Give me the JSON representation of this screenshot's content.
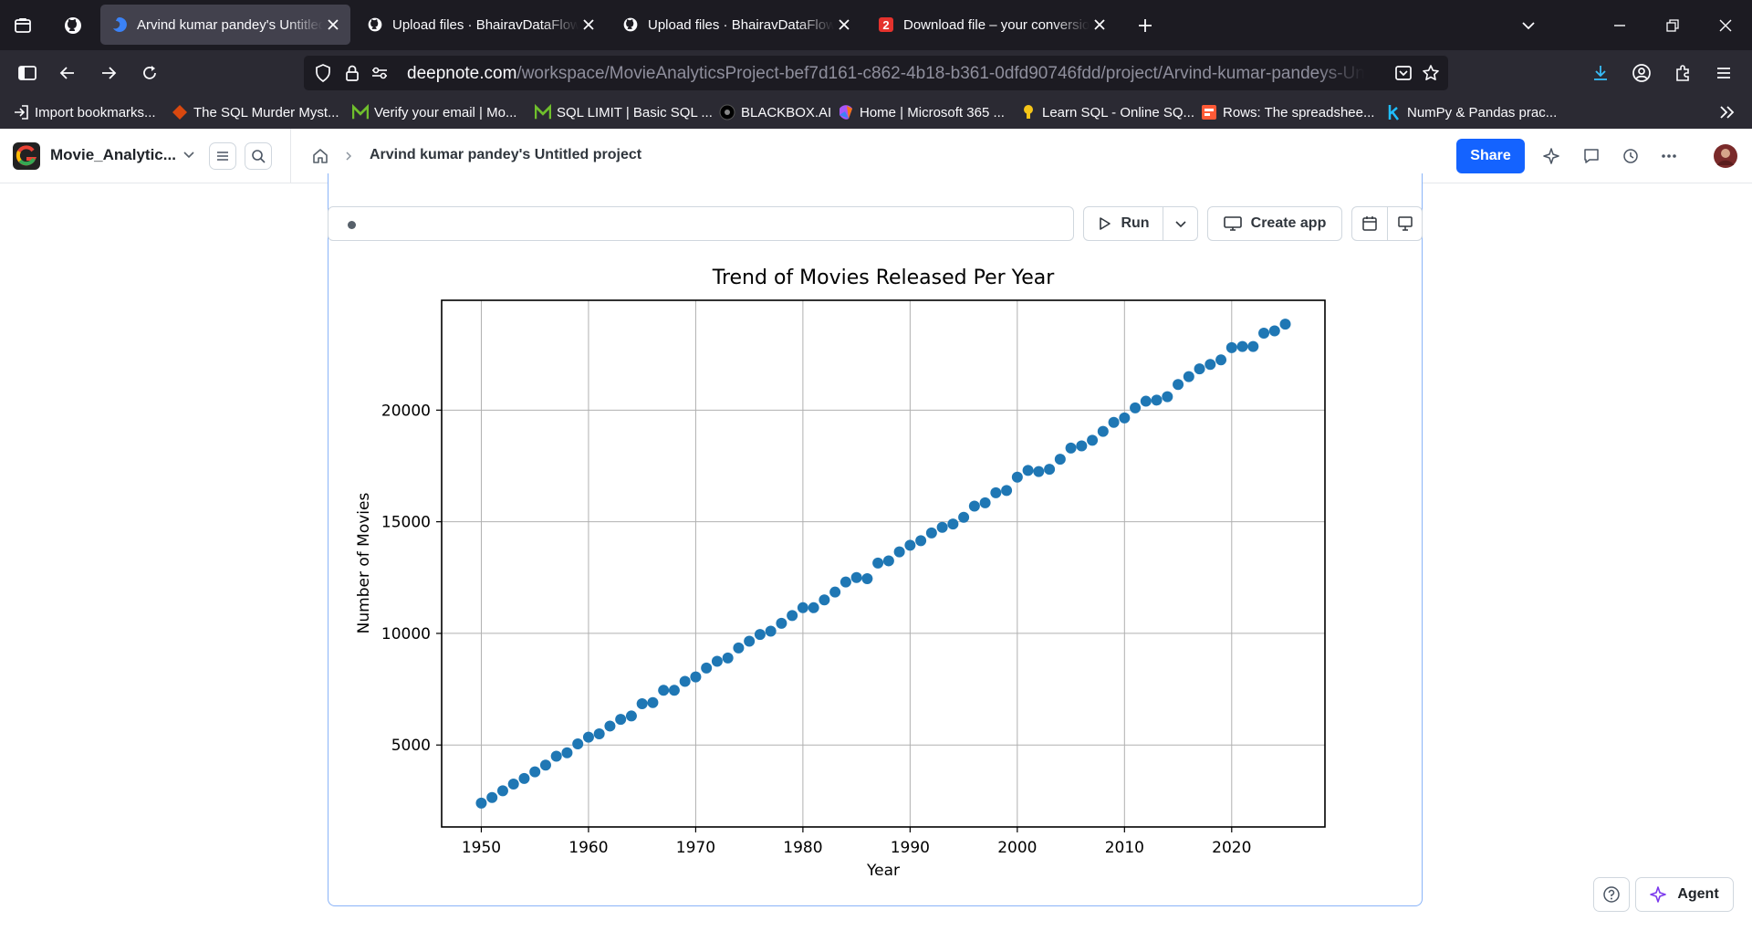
{
  "browser": {
    "tabs": [
      {
        "title": "Arvind kumar pandey's Untitled",
        "active": true
      },
      {
        "title": "Upload files · BhairavDataFlow/M",
        "active": false
      },
      {
        "title": "Upload files · BhairavDataFlow/M",
        "active": false
      },
      {
        "title": "Download file – your conversion",
        "active": false
      }
    ],
    "url": {
      "host": "deepnote.com",
      "path": "/workspace/MovieAnalyticsProject-bef7d161-c862-4b18-b361-0dfd90746fdd/project/Arvind-kumar-pandeys-Untitled-project"
    },
    "bookmarks": [
      {
        "label": "Import bookmarks...",
        "icon": "import-icon"
      },
      {
        "label": "The SQL Murder Myst...",
        "icon": "sql-murder-icon",
        "color": "#d9480f"
      },
      {
        "label": "Verify your email | Mo...",
        "icon": "m-logo-icon",
        "color": "#6fbf2c"
      },
      {
        "label": "SQL LIMIT | Basic SQL ...",
        "icon": "m-logo-icon",
        "color": "#6fbf2c"
      },
      {
        "label": "BLACKBOX.AI",
        "icon": "blackbox-icon"
      },
      {
        "label": "Home | Microsoft 365 ...",
        "icon": "microsoft365-icon"
      },
      {
        "label": "Learn SQL - Online SQ...",
        "icon": "bulb-icon",
        "color": "#f5c518"
      },
      {
        "label": "Rows: The spreadshee...",
        "icon": "rows-icon",
        "color": "#ff5a36"
      },
      {
        "label": "NumPy & Pandas prac...",
        "icon": "k-logo-icon",
        "color": "#20beff"
      }
    ]
  },
  "app": {
    "project_name": "Movie_Analytic...",
    "breadcrumb_title": "Arvind kumar pandey's Untitled project",
    "share_label": "Share",
    "run_label": "Run",
    "create_app_label": "Create app",
    "agent_label": "Agent",
    "accent": "#1463ff"
  },
  "chart_data": {
    "type": "scatter",
    "title": "Trend of Movies Released Per Year",
    "xlabel": "Year",
    "ylabel": "Number of Movies",
    "grid": true,
    "color": "#1f77b4",
    "xlim": [
      1946.3,
      2028.7
    ],
    "ylim": [
      1330,
      24920
    ],
    "xticks": [
      1950,
      1960,
      1970,
      1980,
      1990,
      2000,
      2010,
      2020
    ],
    "yticks": [
      5000,
      10000,
      15000,
      20000
    ],
    "x": [
      1950,
      1951,
      1952,
      1953,
      1954,
      1955,
      1956,
      1957,
      1958,
      1959,
      1960,
      1961,
      1962,
      1963,
      1964,
      1965,
      1966,
      1967,
      1968,
      1969,
      1970,
      1971,
      1972,
      1973,
      1974,
      1975,
      1976,
      1977,
      1978,
      1979,
      1980,
      1981,
      1982,
      1983,
      1984,
      1985,
      1986,
      1987,
      1988,
      1989,
      1990,
      1991,
      1992,
      1993,
      1994,
      1995,
      1996,
      1997,
      1998,
      1999,
      2000,
      2001,
      2002,
      2003,
      2004,
      2005,
      2006,
      2007,
      2008,
      2009,
      2010,
      2011,
      2012,
      2013,
      2014,
      2015,
      2016,
      2017,
      2018,
      2019,
      2020,
      2021,
      2022,
      2023,
      2024,
      2025
    ],
    "y": [
      2400,
      2650,
      2950,
      3250,
      3500,
      3800,
      4100,
      4500,
      4650,
      5050,
      5350,
      5500,
      5850,
      6150,
      6300,
      6850,
      6900,
      7450,
      7450,
      7850,
      8050,
      8450,
      8750,
      8900,
      9350,
      9650,
      9950,
      10100,
      10450,
      10800,
      11150,
      11150,
      11500,
      11850,
      12300,
      12500,
      12450,
      13150,
      13250,
      13650,
      13950,
      14150,
      14500,
      14750,
      14900,
      15200,
      15700,
      15850,
      16300,
      16400,
      17000,
      17300,
      17250,
      17350,
      17800,
      18300,
      18400,
      18650,
      19050,
      19450,
      19650,
      20100,
      20400,
      20450,
      20600,
      21150,
      21500,
      21850,
      22050,
      22250,
      22800,
      22850,
      22850,
      23450,
      23550,
      23850
    ]
  }
}
